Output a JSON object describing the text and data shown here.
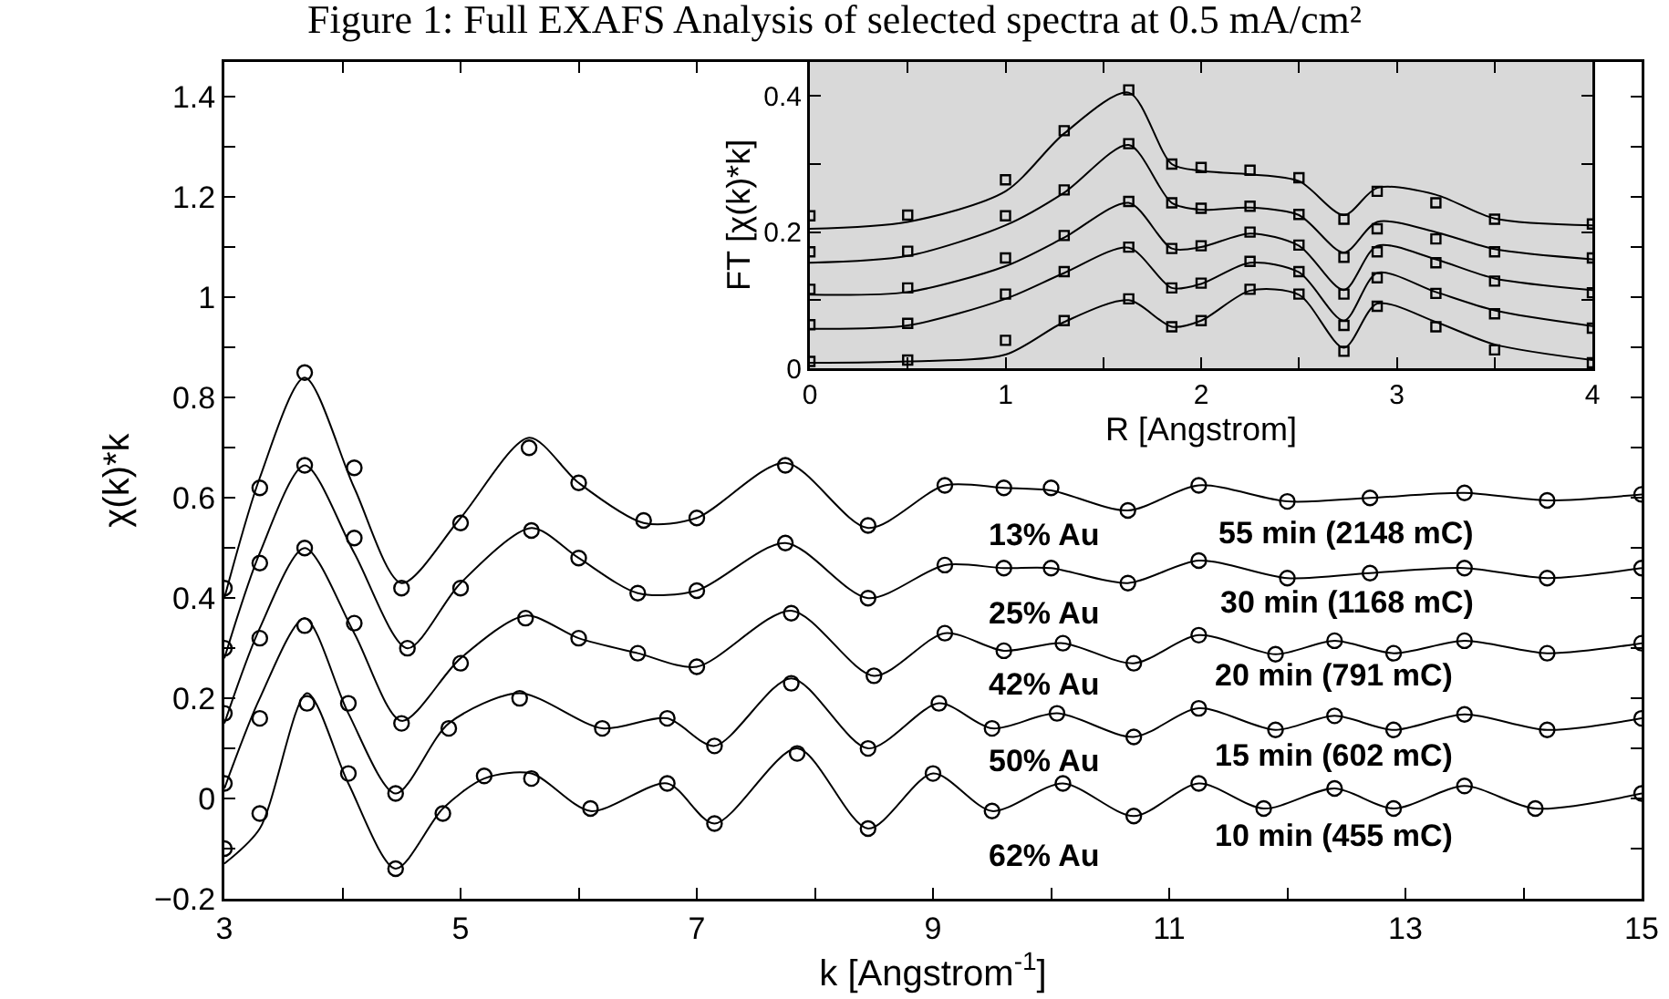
{
  "chart_data": [
    {
      "type": "line",
      "title": "Figure 1: Full EXAFS Analysis of selected spectra at 0.5 mA/cm²",
      "xlabel": "k [Angstrom$^{-1}$]",
      "ylabel": "χ(k)*k",
      "xlim": [
        3,
        15
      ],
      "ylim": [
        -0.2,
        1.47
      ],
      "xticks": [
        3,
        {
          "value": 4,
          "label": null
        },
        5,
        {
          "value": 6,
          "label": null
        },
        7,
        {
          "value": 8,
          "label": null
        },
        9,
        {
          "value": 10,
          "label": null
        },
        11,
        {
          "value": 12,
          "label": null
        },
        13,
        {
          "value": 14,
          "label": null
        },
        15
      ],
      "yticks": [
        {
          "value": -0.2,
          "label": "−0.2"
        },
        {
          "value": -0.1,
          "label": null
        },
        0,
        {
          "value": 0.1,
          "label": null
        },
        0.2,
        {
          "value": 0.3,
          "label": null
        },
        0.4,
        {
          "value": 0.5,
          "label": null
        },
        0.6,
        {
          "value": 0.7,
          "label": null
        },
        0.8,
        {
          "value": 0.9,
          "label": null
        },
        1,
        {
          "value": 1.1,
          "label": null
        },
        1.2,
        {
          "value": 1.3,
          "label": null
        },
        1.4
      ],
      "grid": false,
      "series": [
        {
          "type": "scatter",
          "marker": "circle",
          "color": "#000000",
          "x": [
            3,
            3.3,
            3.68,
            4.1,
            4.5,
            5,
            5.58,
            6,
            6.55,
            7,
            7.75,
            8.45,
            9.1,
            9.6,
            10,
            10.65,
            11.25,
            12,
            12.7,
            13.5,
            14.2,
            15
          ],
          "values": [
            0.42,
            0.62,
            0.85,
            0.66,
            0.42,
            0.55,
            0.7,
            0.63,
            0.555,
            0.56,
            0.665,
            0.545,
            0.625,
            0.62,
            0.62,
            0.575,
            0.625,
            0.593,
            0.6,
            0.61,
            0.595,
            0.607
          ]
        },
        {
          "color": "#000000",
          "x": [
            3,
            3.3,
            3.68,
            4.1,
            4.5,
            5,
            5.58,
            6,
            6.55,
            7,
            7.75,
            8.45,
            9.1,
            9.6,
            10,
            10.65,
            11.25,
            12,
            12.7,
            13.5,
            14.2,
            15
          ],
          "values": [
            0.4,
            0.64,
            0.84,
            0.62,
            0.43,
            0.56,
            0.72,
            0.63,
            0.55,
            0.56,
            0.67,
            0.54,
            0.625,
            0.62,
            0.615,
            0.575,
            0.625,
            0.593,
            0.6,
            0.61,
            0.595,
            0.607
          ]
        },
        {
          "type": "scatter",
          "marker": "circle",
          "color": "#000000",
          "x": [
            3,
            3.3,
            3.68,
            4.1,
            4.55,
            5,
            5.6,
            6,
            6.5,
            7,
            7.75,
            8.45,
            9.1,
            9.6,
            10,
            10.65,
            11.25,
            12,
            12.7,
            13.5,
            14.2,
            15
          ],
          "values": [
            0.3,
            0.47,
            0.665,
            0.52,
            0.3,
            0.42,
            0.535,
            0.48,
            0.41,
            0.415,
            0.51,
            0.4,
            0.466,
            0.46,
            0.46,
            0.43,
            0.475,
            0.44,
            0.45,
            0.46,
            0.44,
            0.46
          ]
        },
        {
          "color": "#000000",
          "x": [
            3,
            3.3,
            3.68,
            4.1,
            4.55,
            5,
            5.6,
            6,
            6.5,
            7,
            7.75,
            8.45,
            9.1,
            9.6,
            10,
            10.65,
            11.25,
            12,
            12.7,
            13.5,
            14.2,
            15
          ],
          "values": [
            0.28,
            0.49,
            0.665,
            0.49,
            0.3,
            0.43,
            0.54,
            0.48,
            0.41,
            0.415,
            0.51,
            0.4,
            0.466,
            0.46,
            0.46,
            0.43,
            0.475,
            0.44,
            0.45,
            0.46,
            0.44,
            0.46
          ]
        },
        {
          "type": "scatter",
          "marker": "circle",
          "color": "#000000",
          "x": [
            3,
            3.3,
            3.68,
            4.1,
            4.5,
            5,
            5.55,
            6,
            6.5,
            7,
            7.8,
            8.5,
            9.1,
            9.6,
            10.1,
            10.7,
            11.25,
            11.9,
            12.4,
            12.9,
            13.5,
            14.2,
            15
          ],
          "values": [
            0.17,
            0.32,
            0.5,
            0.35,
            0.15,
            0.27,
            0.36,
            0.32,
            0.29,
            0.263,
            0.37,
            0.245,
            0.33,
            0.295,
            0.31,
            0.27,
            0.326,
            0.288,
            0.315,
            0.29,
            0.315,
            0.29,
            0.31
          ]
        },
        {
          "color": "#000000",
          "x": [
            3,
            3.3,
            3.68,
            4.1,
            4.5,
            5,
            5.55,
            6,
            6.5,
            7,
            7.8,
            8.5,
            9.1,
            9.6,
            10.1,
            10.7,
            11.25,
            11.9,
            12.4,
            12.9,
            13.5,
            14.2,
            15
          ],
          "values": [
            0.15,
            0.34,
            0.5,
            0.33,
            0.155,
            0.28,
            0.365,
            0.32,
            0.29,
            0.263,
            0.375,
            0.245,
            0.33,
            0.295,
            0.31,
            0.27,
            0.326,
            0.288,
            0.315,
            0.29,
            0.315,
            0.29,
            0.31
          ]
        },
        {
          "type": "scatter",
          "marker": "circle",
          "color": "#000000",
          "x": [
            3,
            3.3,
            3.68,
            4.05,
            4.45,
            4.9,
            5.5,
            6.2,
            6.75,
            7.15,
            7.8,
            8.45,
            9.05,
            9.5,
            10.05,
            10.7,
            11.25,
            11.9,
            12.4,
            12.9,
            13.5,
            14.2,
            15
          ],
          "values": [
            0.03,
            0.16,
            0.345,
            0.19,
            0.01,
            0.14,
            0.2,
            0.14,
            0.16,
            0.105,
            0.23,
            0.1,
            0.19,
            0.14,
            0.17,
            0.123,
            0.18,
            0.137,
            0.165,
            0.137,
            0.168,
            0.137,
            0.16
          ]
        },
        {
          "color": "#000000",
          "x": [
            3,
            3.3,
            3.68,
            4.05,
            4.45,
            4.9,
            5.5,
            6.2,
            6.75,
            7.15,
            7.8,
            8.45,
            9.05,
            9.5,
            10.05,
            10.7,
            11.25,
            11.9,
            12.4,
            12.9,
            13.5,
            14.2,
            15
          ],
          "values": [
            0.02,
            0.2,
            0.36,
            0.17,
            0.01,
            0.15,
            0.21,
            0.14,
            0.16,
            0.105,
            0.24,
            0.1,
            0.19,
            0.14,
            0.17,
            0.123,
            0.18,
            0.137,
            0.165,
            0.137,
            0.168,
            0.137,
            0.16
          ]
        },
        {
          "type": "scatter",
          "marker": "circle",
          "color": "#000000",
          "x": [
            3,
            3.3,
            3.7,
            4.05,
            4.45,
            4.85,
            5.2,
            5.6,
            6.1,
            6.75,
            7.15,
            7.85,
            8.45,
            9,
            9.5,
            10.1,
            10.7,
            11.25,
            11.8,
            12.4,
            12.9,
            13.5,
            14.1,
            15
          ],
          "values": [
            -0.1,
            -0.03,
            0.19,
            0.05,
            -0.14,
            -0.03,
            0.045,
            0.04,
            -0.02,
            0.03,
            -0.05,
            0.09,
            -0.06,
            0.05,
            -0.025,
            0.03,
            -0.035,
            0.03,
            -0.02,
            0.02,
            -0.02,
            0.025,
            -0.02,
            0.01
          ]
        },
        {
          "color": "#000000",
          "x": [
            3,
            3.3,
            3.7,
            4.05,
            4.45,
            4.85,
            5.2,
            5.6,
            6.1,
            6.75,
            7.15,
            7.85,
            8.45,
            9,
            9.5,
            10.1,
            10.7,
            11.25,
            11.8,
            12.4,
            12.9,
            13.5,
            14.1,
            15
          ],
          "values": [
            -0.13,
            -0.06,
            0.21,
            0.03,
            -0.14,
            -0.02,
            0.04,
            0.05,
            -0.025,
            0.03,
            -0.05,
            0.1,
            -0.06,
            0.05,
            -0.025,
            0.03,
            -0.035,
            0.03,
            -0.02,
            0.02,
            -0.02,
            0.025,
            -0.02,
            0.01
          ]
        }
      ],
      "annotations": [
        "13% Au",
        "55 min (2148 mC)",
        "25% Au",
        "30 min (1168 mC)",
        "42% Au",
        "20 min (791 mC)",
        "50% Au",
        "15 min (602 mC)",
        "62% Au",
        "10 min (455 mC)"
      ]
    },
    {
      "type": "line",
      "xlabel": "R [Angstrom]",
      "ylabel": "FT [χ(k)*k]",
      "xlim": [
        0,
        4
      ],
      "ylim": [
        0,
        0.45
      ],
      "xticks": [
        0,
        {
          "value": 0.5,
          "label": null
        },
        1,
        {
          "value": 1.5,
          "label": null
        },
        2,
        {
          "value": 2.5,
          "label": null
        },
        3,
        {
          "value": 3.5,
          "label": null
        },
        4
      ],
      "yticks": [
        0,
        {
          "value": 0.1,
          "label": null
        },
        0.2,
        {
          "value": 0.3,
          "label": null
        },
        0.4
      ],
      "grid": false,
      "series": [
        {
          "type": "scatter",
          "marker": "square",
          "color": "#000000",
          "x": [
            0,
            0.5,
            1,
            1.3,
            1.63,
            1.85,
            2,
            2.25,
            2.5,
            2.73,
            2.9,
            3.2,
            3.5,
            4
          ],
          "values": [
            0.224,
            0.225,
            0.277,
            0.349,
            0.409,
            0.3,
            0.295,
            0.291,
            0.28,
            0.219,
            0.26,
            0.243,
            0.219,
            0.212
          ]
        },
        {
          "color": "#000000",
          "x": [
            0,
            0.5,
            1,
            1.3,
            1.63,
            1.85,
            2,
            2.25,
            2.5,
            2.73,
            2.9,
            3.2,
            3.5,
            4
          ],
          "values": [
            0.205,
            0.215,
            0.26,
            0.345,
            0.405,
            0.3,
            0.29,
            0.285,
            0.275,
            0.225,
            0.265,
            0.255,
            0.22,
            0.21
          ]
        },
        {
          "type": "scatter",
          "marker": "square",
          "color": "#000000",
          "x": [
            0,
            0.5,
            1,
            1.3,
            1.63,
            1.85,
            2,
            2.25,
            2.5,
            2.73,
            2.9,
            3.2,
            3.5,
            4
          ],
          "values": [
            0.171,
            0.172,
            0.224,
            0.262,
            0.33,
            0.243,
            0.235,
            0.238,
            0.226,
            0.163,
            0.205,
            0.19,
            0.171,
            0.162
          ]
        },
        {
          "color": "#000000",
          "x": [
            0,
            0.5,
            1,
            1.3,
            1.63,
            1.85,
            2,
            2.25,
            2.5,
            2.73,
            2.9,
            3.2,
            3.5,
            4
          ],
          "values": [
            0.155,
            0.165,
            0.21,
            0.258,
            0.328,
            0.243,
            0.233,
            0.236,
            0.225,
            0.17,
            0.215,
            0.2,
            0.175,
            0.16
          ]
        },
        {
          "type": "scatter",
          "marker": "square",
          "color": "#000000",
          "x": [
            0,
            0.5,
            1,
            1.3,
            1.63,
            1.85,
            2,
            2.25,
            2.5,
            2.73,
            2.9,
            3.2,
            3.5,
            4
          ],
          "values": [
            0.116,
            0.118,
            0.162,
            0.195,
            0.245,
            0.176,
            0.18,
            0.2,
            0.181,
            0.109,
            0.171,
            0.155,
            0.128,
            0.111
          ]
        },
        {
          "color": "#000000",
          "x": [
            0,
            0.5,
            1,
            1.3,
            1.63,
            1.85,
            2,
            2.25,
            2.5,
            2.73,
            2.9,
            3.2,
            3.5,
            4
          ],
          "values": [
            0.108,
            0.112,
            0.15,
            0.192,
            0.243,
            0.176,
            0.178,
            0.198,
            0.18,
            0.115,
            0.18,
            0.16,
            0.132,
            0.115
          ]
        },
        {
          "type": "scatter",
          "marker": "square",
          "color": "#000000",
          "x": [
            0,
            0.5,
            1,
            1.3,
            1.63,
            1.85,
            2,
            2.25,
            2.5,
            2.73,
            2.9,
            3.2,
            3.5,
            4
          ],
          "values": [
            0.064,
            0.066,
            0.109,
            0.142,
            0.178,
            0.118,
            0.125,
            0.157,
            0.142,
            0.063,
            0.133,
            0.11,
            0.08,
            0.059
          ]
        },
        {
          "color": "#000000",
          "x": [
            0,
            0.5,
            1,
            1.3,
            1.63,
            1.85,
            2,
            2.25,
            2.5,
            2.73,
            2.9,
            3.2,
            3.5,
            4
          ],
          "values": [
            0.058,
            0.063,
            0.102,
            0.14,
            0.177,
            0.118,
            0.124,
            0.155,
            0.141,
            0.07,
            0.14,
            0.112,
            0.085,
            0.062
          ]
        },
        {
          "type": "scatter",
          "marker": "square",
          "color": "#000000",
          "x": [
            0,
            0.5,
            1,
            1.3,
            1.63,
            1.85,
            2,
            2.25,
            2.5,
            2.73,
            2.9,
            3.2,
            3.5,
            4
          ],
          "values": [
            0.01,
            0.012,
            0.041,
            0.07,
            0.102,
            0.061,
            0.07,
            0.116,
            0.109,
            0.025,
            0.091,
            0.061,
            0.027,
            0.008
          ]
        },
        {
          "color": "#000000",
          "x": [
            0,
            0.5,
            1,
            1.3,
            1.63,
            1.85,
            2,
            2.25,
            2.5,
            2.73,
            2.9,
            3.2,
            3.5,
            4
          ],
          "values": [
            0.008,
            0.01,
            0.02,
            0.068,
            0.1,
            0.061,
            0.07,
            0.114,
            0.108,
            0.03,
            0.095,
            0.068,
            0.035,
            0.012
          ]
        }
      ]
    }
  ]
}
